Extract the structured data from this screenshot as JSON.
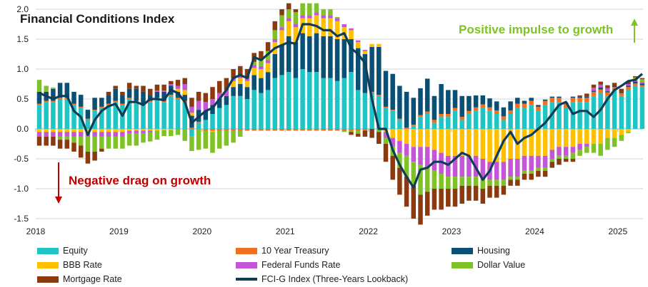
{
  "chart_data": {
    "type": "bar",
    "stacked": true,
    "title": "Financial Conditions Index",
    "start_month": "2018-01",
    "x_tick_labels": [
      "2018",
      "2019",
      "2020",
      "2021",
      "2022",
      "2023",
      "2024",
      "2025"
    ],
    "y_tick_labels": [
      "2.0",
      "1.5",
      "1.0",
      "0.5",
      "0.0",
      "-0.5",
      "-1.0",
      "-1.5"
    ],
    "ylim": [
      -1.5,
      2.0
    ],
    "grid": true,
    "legend_position": "bottom",
    "annotations": {
      "positive": "Positive impulse to growth",
      "negative": "Negative drag on growth"
    },
    "series": [
      {
        "name": "Equity",
        "color": "#1fc4c4",
        "values": [
          0.4,
          0.45,
          0.45,
          0.5,
          0.5,
          0.4,
          0.35,
          0.15,
          0.3,
          0.35,
          0.4,
          0.45,
          0.4,
          0.5,
          0.45,
          0.4,
          0.45,
          0.5,
          0.45,
          0.55,
          0.5,
          0.45,
          -0.12,
          0.1,
          0.15,
          0.25,
          0.35,
          0.4,
          0.55,
          0.55,
          0.5,
          0.65,
          0.6,
          0.65,
          0.85,
          0.9,
          0.95,
          0.85,
          1.0,
          0.95,
          0.95,
          0.85,
          0.85,
          0.8,
          0.85,
          0.95,
          0.65,
          0.6,
          0.6,
          0.55,
          0.35,
          0.3,
          0.15,
          0.0,
          0.05,
          0.2,
          0.25,
          0.1,
          0.2,
          0.2,
          0.3,
          0.15,
          0.25,
          0.3,
          0.35,
          0.3,
          0.25,
          0.15,
          0.25,
          0.35,
          0.35,
          0.4,
          0.3,
          0.4,
          0.45,
          0.45,
          0.35,
          0.45,
          0.45,
          0.45,
          0.55,
          0.6,
          0.55,
          0.65,
          0.55,
          0.65,
          0.72,
          0.7
        ]
      },
      {
        "name": "10 Year Treasury",
        "color": "#f07022",
        "values": [
          0.02,
          0.02,
          0.02,
          0.02,
          0.02,
          0.02,
          0.02,
          0.02,
          0.02,
          0.02,
          0.02,
          0.02,
          0.02,
          0.02,
          0.02,
          0.02,
          0.02,
          0.02,
          0.02,
          0.02,
          0.02,
          0.02,
          0.02,
          0.02,
          -0.03,
          -0.03,
          -0.03,
          -0.03,
          -0.03,
          -0.03,
          -0.03,
          -0.03,
          -0.03,
          -0.03,
          -0.03,
          -0.03,
          -0.03,
          -0.03,
          -0.03,
          -0.03,
          -0.03,
          -0.03,
          -0.03,
          -0.03,
          -0.03,
          -0.03,
          -0.03,
          -0.03,
          0.02,
          0.02,
          0.02,
          0.02,
          0.02,
          0.02,
          0.02,
          0.03,
          0.04,
          0.05,
          0.05,
          0.05,
          0.05,
          0.05,
          0.05,
          0.06,
          0.06,
          0.06,
          0.06,
          0.06,
          0.06,
          0.07,
          0.07,
          0.07,
          0.07,
          0.07,
          0.07,
          0.07,
          0.07,
          0.07,
          0.07,
          0.07,
          0.07,
          0.06,
          0.06,
          0.05,
          0.05,
          0.05,
          0.04,
          0.03
        ]
      },
      {
        "name": "Housing",
        "color": "#0a4f75",
        "values": [
          0.2,
          0.15,
          0.2,
          0.25,
          0.25,
          0.2,
          0.2,
          0.15,
          0.2,
          0.15,
          0.15,
          0.2,
          0.15,
          0.15,
          0.2,
          0.2,
          0.1,
          0.1,
          0.15,
          0.15,
          0.1,
          0.1,
          0.2,
          0.2,
          0.15,
          0.15,
          0.15,
          0.15,
          0.15,
          0.2,
          0.2,
          0.25,
          0.25,
          0.3,
          0.4,
          0.5,
          0.6,
          0.6,
          0.6,
          0.6,
          0.65,
          0.7,
          0.7,
          0.7,
          0.65,
          0.55,
          0.7,
          0.65,
          0.75,
          0.8,
          0.6,
          0.6,
          0.55,
          0.6,
          0.45,
          0.45,
          0.55,
          0.4,
          0.5,
          0.4,
          0.3,
          0.35,
          0.25,
          0.2,
          0.15,
          0.15,
          0.15,
          0.15,
          0.15,
          0.1,
          0.05,
          0.05,
          0.03,
          0.02,
          0.02,
          0.02,
          0.02,
          0.02,
          0.02,
          0.02,
          0.02,
          0.03,
          0.02,
          0.02,
          0.02,
          0.02,
          0.03,
          0.03
        ]
      },
      {
        "name": "BBB Rate",
        "color": "#ffc000",
        "values": [
          -0.05,
          -0.05,
          -0.05,
          -0.05,
          -0.05,
          -0.05,
          -0.05,
          -0.05,
          -0.05,
          -0.05,
          -0.05,
          -0.05,
          -0.05,
          -0.03,
          -0.03,
          -0.03,
          -0.03,
          -0.03,
          -0.02,
          -0.02,
          0.05,
          0.08,
          0.05,
          0.0,
          0.0,
          -0.02,
          0.0,
          0.0,
          0.1,
          0.1,
          0.1,
          0.12,
          0.15,
          0.15,
          0.2,
          0.25,
          0.25,
          0.25,
          0.25,
          0.3,
          0.3,
          0.3,
          0.3,
          0.3,
          0.2,
          0.15,
          0.1,
          0.05,
          0.05,
          0.05,
          -0.05,
          -0.15,
          -0.2,
          -0.25,
          -0.3,
          -0.3,
          -0.3,
          -0.35,
          -0.4,
          -0.45,
          -0.45,
          -0.45,
          -0.45,
          -0.45,
          -0.5,
          -0.55,
          -0.55,
          -0.55,
          -0.5,
          -0.5,
          -0.45,
          -0.45,
          -0.45,
          -0.45,
          -0.35,
          -0.3,
          -0.3,
          -0.3,
          -0.25,
          -0.25,
          -0.25,
          -0.25,
          -0.15,
          -0.15,
          -0.1,
          -0.05,
          0.0,
          0.0
        ]
      },
      {
        "name": "Federal Funds Rate",
        "color": "#c355d6",
        "values": [
          -0.08,
          -0.08,
          -0.08,
          -0.08,
          -0.08,
          -0.08,
          -0.08,
          -0.08,
          -0.08,
          -0.08,
          -0.08,
          -0.08,
          -0.08,
          -0.05,
          -0.05,
          -0.05,
          -0.03,
          0.02,
          0.02,
          0.03,
          0.05,
          0.1,
          0.1,
          0.15,
          0.15,
          0.1,
          0.1,
          0.1,
          0.05,
          0.05,
          0.05,
          0.05,
          0.05,
          0.05,
          0.05,
          0.05,
          0.05,
          0.05,
          0.05,
          0.05,
          0.05,
          0.05,
          0.05,
          0.05,
          0.05,
          0.03,
          0.03,
          0.02,
          0.0,
          0.0,
          -0.1,
          -0.15,
          -0.2,
          -0.2,
          -0.25,
          -0.3,
          -0.35,
          -0.35,
          -0.35,
          -0.35,
          -0.35,
          -0.35,
          -0.35,
          -0.35,
          -0.35,
          -0.3,
          -0.3,
          -0.3,
          -0.3,
          -0.3,
          -0.25,
          -0.25,
          -0.2,
          -0.2,
          -0.15,
          -0.15,
          -0.15,
          -0.1,
          -0.1,
          -0.05,
          0.05,
          0.05,
          0.05,
          0.0,
          0.0,
          0.03,
          0.02,
          0.02
        ]
      },
      {
        "name": "Dollar Value",
        "color": "#7ec226",
        "values": [
          0.2,
          0.1,
          0.02,
          -0.05,
          -0.05,
          -0.1,
          -0.15,
          -0.25,
          -0.25,
          -0.2,
          -0.2,
          -0.2,
          -0.2,
          -0.2,
          -0.2,
          -0.15,
          -0.15,
          -0.15,
          -0.1,
          -0.1,
          -0.1,
          -0.2,
          -0.25,
          -0.35,
          -0.3,
          -0.35,
          -0.3,
          -0.25,
          -0.2,
          -0.1,
          0.0,
          0.05,
          0.1,
          0.15,
          0.15,
          0.2,
          0.15,
          0.2,
          0.2,
          0.2,
          0.15,
          0.1,
          0.1,
          0.02,
          -0.02,
          -0.02,
          -0.05,
          0.0,
          0.0,
          -0.05,
          -0.1,
          -0.15,
          -0.25,
          -0.35,
          -0.4,
          -0.5,
          -0.4,
          -0.3,
          -0.25,
          -0.2,
          -0.2,
          -0.15,
          -0.15,
          -0.15,
          -0.15,
          -0.1,
          -0.1,
          -0.1,
          -0.05,
          -0.05,
          -0.05,
          -0.05,
          -0.05,
          -0.05,
          -0.05,
          -0.05,
          -0.05,
          -0.1,
          -0.1,
          -0.1,
          -0.15,
          -0.2,
          -0.2,
          -0.15,
          -0.1,
          -0.02,
          0.05,
          0.05
        ]
      },
      {
        "name": "Mortgage Rate",
        "color": "#8b3a0f",
        "values": [
          -0.15,
          -0.15,
          -0.15,
          -0.15,
          -0.15,
          -0.15,
          -0.2,
          -0.2,
          -0.15,
          -0.05,
          0.05,
          0.05,
          0.05,
          0.1,
          0.05,
          0.1,
          0.1,
          0.1,
          0.1,
          0.05,
          0.1,
          0.1,
          0.15,
          0.15,
          0.15,
          0.2,
          0.2,
          0.2,
          0.15,
          0.15,
          0.15,
          0.15,
          0.15,
          0.15,
          0.15,
          0.1,
          0.1,
          0.05,
          0.0,
          0.0,
          0.0,
          0.0,
          0.0,
          0.0,
          0.0,
          -0.05,
          -0.05,
          -0.1,
          -0.15,
          -0.2,
          -0.3,
          -0.4,
          -0.45,
          -0.5,
          -0.55,
          -0.5,
          -0.4,
          -0.35,
          -0.35,
          -0.3,
          -0.3,
          -0.3,
          -0.25,
          -0.25,
          -0.25,
          -0.2,
          -0.2,
          -0.15,
          -0.1,
          -0.1,
          -0.1,
          -0.1,
          -0.1,
          -0.1,
          -0.1,
          -0.1,
          -0.05,
          -0.05,
          0.02,
          0.05,
          0.05,
          0.05,
          0.05,
          0.05,
          0.05,
          0.05,
          0.02,
          0.02
        ]
      }
    ],
    "line": {
      "name": "FCI-G Index (Three-Years Lookback)",
      "color": "#0f3d56",
      "values": [
        0.6,
        0.55,
        0.5,
        0.55,
        0.55,
        0.3,
        0.2,
        -0.1,
        0.15,
        0.3,
        0.38,
        0.42,
        0.22,
        0.45,
        0.45,
        0.4,
        0.5,
        0.5,
        0.48,
        0.65,
        0.6,
        0.45,
        0.1,
        0.2,
        0.3,
        0.35,
        0.5,
        0.65,
        0.85,
        0.9,
        0.85,
        1.2,
        1.15,
        1.25,
        1.35,
        1.4,
        1.45,
        1.42,
        1.75,
        1.75,
        1.72,
        1.65,
        1.65,
        1.55,
        1.6,
        1.35,
        1.25,
        1.1,
        0.5,
        0.0,
        0.0,
        -0.35,
        -0.6,
        -0.8,
        -0.98,
        -0.68,
        -0.65,
        -0.55,
        -0.55,
        -0.6,
        -0.5,
        -0.4,
        -0.45,
        -0.65,
        -0.85,
        -0.7,
        -0.45,
        -0.2,
        -0.05,
        -0.25,
        -0.15,
        -0.1,
        0.0,
        0.1,
        0.25,
        0.4,
        0.45,
        0.25,
        0.3,
        0.3,
        0.2,
        0.32,
        0.5,
        0.65,
        0.72,
        0.8,
        0.82,
        0.92
      ]
    }
  }
}
